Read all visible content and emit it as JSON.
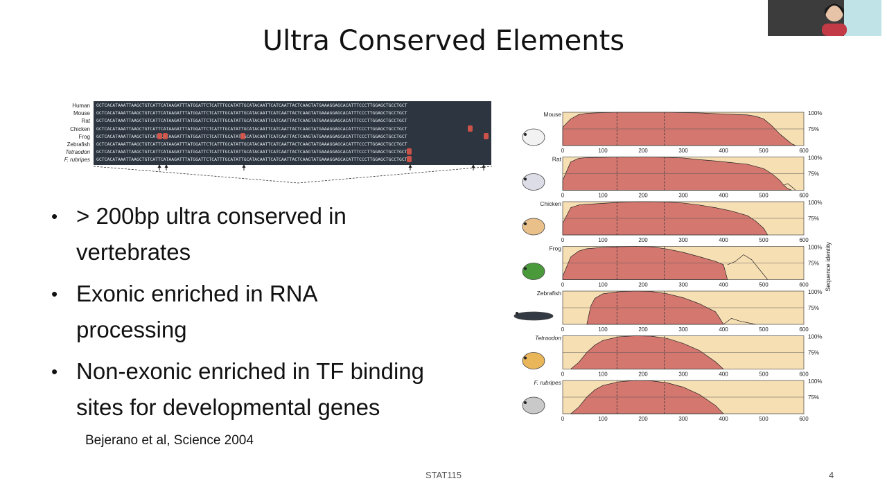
{
  "slide": {
    "title": "Ultra Conserved Elements",
    "bullets": [
      "> 200bp ultra conserved in vertebrates",
      "Exonic enriched in RNA processing",
      "Non-exonic enriched in TF binding sites for developmental genes"
    ],
    "bullet_lines": [
      [
        "> 200bp ultra conserved in",
        "vertebrates"
      ],
      [
        "Exonic enriched in RNA",
        "processing"
      ],
      [
        "Non-exonic enriched in TF binding",
        "sites for developmental genes"
      ]
    ],
    "citation": "Bejerano et al, Science 2004",
    "footer": "STAT115",
    "page_number": "4"
  },
  "alignment": {
    "species": [
      "Human",
      "Mouse",
      "Rat",
      "Chicken",
      "Frog",
      "Zebrafish",
      "Tetraodon",
      "F. rubripes"
    ],
    "italic": [
      false,
      false,
      false,
      false,
      false,
      false,
      true,
      true
    ],
    "sequence": "GCTCACATAAATTAAGCTGTCATTCATAAGATTTATGGATTCTCATTTGCATATTGCATACAATTCATCAATTACTCAAGTATGAAAGGAGCACATTTCCCTTGGAGCTGCCTGCT",
    "colors": {
      "background": "#2d3540",
      "text": "#e8edf2",
      "mismatch": "#e8574a"
    }
  },
  "chart_data": {
    "type": "area",
    "ylabel": "Sequence identity",
    "xlim": [
      0,
      600
    ],
    "x_ticks": [
      0,
      100,
      200,
      300,
      400,
      500,
      600
    ],
    "y_ticks": [
      "100%",
      "75%"
    ],
    "core_region": [
      135,
      253
    ],
    "colors": {
      "fill": "#d4776f",
      "background": "#f7dfb4",
      "line": "#000000"
    },
    "series": [
      {
        "name": "Mouse",
        "italic": false,
        "x": [
          0,
          20,
          40,
          60,
          100,
          140,
          180,
          220,
          260,
          300,
          340,
          380,
          420,
          460,
          480,
          500,
          520,
          540,
          560,
          570,
          580
        ],
        "y": [
          0.55,
          0.8,
          0.93,
          0.97,
          0.99,
          1.0,
          1.0,
          1.0,
          1.0,
          0.99,
          0.98,
          0.96,
          0.94,
          0.92,
          0.88,
          0.8,
          0.6,
          0.35,
          0.15,
          0.05,
          0.0
        ]
      },
      {
        "name": "Rat",
        "italic": false,
        "x": [
          0,
          20,
          40,
          60,
          100,
          140,
          180,
          220,
          260,
          300,
          340,
          380,
          420,
          460,
          500,
          520,
          540,
          550,
          560,
          570
        ],
        "y": [
          0.3,
          0.85,
          0.96,
          0.98,
          0.99,
          1.0,
          1.0,
          1.0,
          0.99,
          0.97,
          0.92,
          0.88,
          0.83,
          0.78,
          0.65,
          0.5,
          0.3,
          0.15,
          0.05,
          0.0
        ]
      },
      {
        "name": "Chicken",
        "italic": false,
        "x": [
          0,
          20,
          40,
          60,
          100,
          140,
          180,
          220,
          260,
          300,
          340,
          380,
          420,
          460,
          480,
          500,
          510
        ],
        "y": [
          0.35,
          0.82,
          0.9,
          0.92,
          0.95,
          0.98,
          1.0,
          1.0,
          0.99,
          0.96,
          0.9,
          0.82,
          0.72,
          0.58,
          0.42,
          0.2,
          0.0
        ]
      },
      {
        "name": "Frog",
        "italic": false,
        "x": [
          0,
          20,
          40,
          60,
          100,
          140,
          180,
          220,
          260,
          300,
          340,
          380,
          400,
          410
        ],
        "y": [
          0.1,
          0.68,
          0.86,
          0.93,
          0.97,
          0.99,
          1.0,
          0.99,
          0.92,
          0.82,
          0.69,
          0.55,
          0.45,
          0.0
        ]
      },
      {
        "name": "Zebrafish",
        "italic": false,
        "x": [
          60,
          70,
          80,
          100,
          140,
          180,
          220,
          260,
          300,
          340,
          380,
          390,
          400
        ],
        "y": [
          0.0,
          0.55,
          0.78,
          0.92,
          0.98,
          1.0,
          0.99,
          0.92,
          0.8,
          0.62,
          0.38,
          0.2,
          0.0
        ]
      },
      {
        "name": "Tetraodon",
        "italic": true,
        "x": [
          20,
          40,
          60,
          80,
          100,
          140,
          180,
          220,
          260,
          300,
          340,
          380,
          400
        ],
        "y": [
          0.0,
          0.2,
          0.5,
          0.72,
          0.86,
          0.97,
          1.0,
          0.99,
          0.92,
          0.77,
          0.56,
          0.22,
          0.0
        ]
      },
      {
        "name": "F. rubripes",
        "italic": true,
        "x": [
          20,
          40,
          60,
          80,
          100,
          140,
          180,
          220,
          260,
          300,
          340,
          380,
          400
        ],
        "y": [
          0.0,
          0.2,
          0.5,
          0.72,
          0.85,
          0.96,
          1.0,
          0.99,
          0.93,
          0.8,
          0.58,
          0.25,
          0.0
        ]
      }
    ],
    "tails": [
      {
        "name": "Rat",
        "x": [
          550,
          560,
          570,
          580
        ],
        "y": [
          0.15,
          0.2,
          0.1,
          0.0
        ]
      },
      {
        "name": "Frog",
        "x": [
          410,
          430,
          450,
          470,
          490,
          510
        ],
        "y": [
          0.45,
          0.55,
          0.75,
          0.6,
          0.3,
          0.0
        ]
      },
      {
        "name": "Zebrafish",
        "x": [
          400,
          420,
          440,
          460,
          480
        ],
        "y": [
          0.0,
          0.18,
          0.1,
          0.05,
          0.0
        ]
      }
    ]
  }
}
